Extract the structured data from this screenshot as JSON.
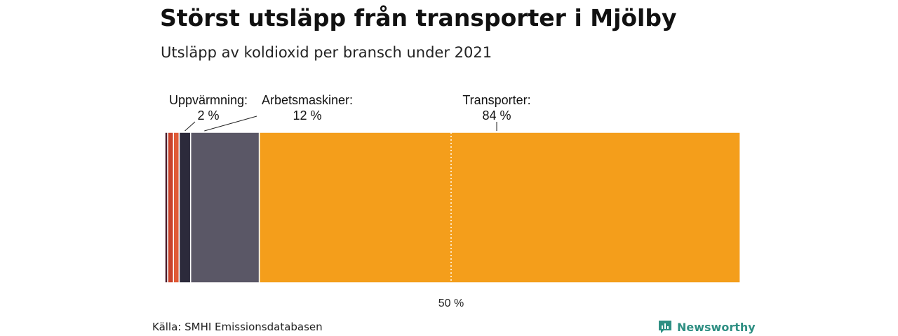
{
  "header": {
    "title": "Störst utsläpp från transporter i Mjölby",
    "subtitle": "Utsläpp av koldioxid per bransch under 2021"
  },
  "footer": {
    "source": "Källa: SMHI Emissionsdatabasen",
    "brand": "Newsworthy",
    "brand_icon": "newsworthy-logo-icon",
    "brand_color": "#2f8f83"
  },
  "chart_data": {
    "type": "bar",
    "orientation": "horizontal-stacked-100",
    "title": "Störst utsläpp från transporter i Mjölby",
    "subtitle": "Utsläpp av koldioxid per bransch under 2021",
    "xlim": [
      0,
      100
    ],
    "segments": [
      {
        "name": "",
        "value": 0.5,
        "color": "#4a1c2c"
      },
      {
        "name": "",
        "value": 1,
        "color": "#c9432c"
      },
      {
        "name": "",
        "value": 1,
        "color": "#e05a36"
      },
      {
        "name": "Uppvärmning",
        "value": 2,
        "color": "#2c2a3b",
        "label": "Uppvärmning:",
        "value_label": "2 %"
      },
      {
        "name": "Arbetsmaskiner",
        "value": 12,
        "color": "#5a5766",
        "label": "Arbetsmaskiner:",
        "value_label": "12 %"
      },
      {
        "name": "Transporter",
        "value": 84,
        "color": "#f49e1b",
        "label": "Transporter:",
        "value_label": "84 %"
      }
    ],
    "reference_line": {
      "value": 50,
      "label": "50 %"
    }
  }
}
